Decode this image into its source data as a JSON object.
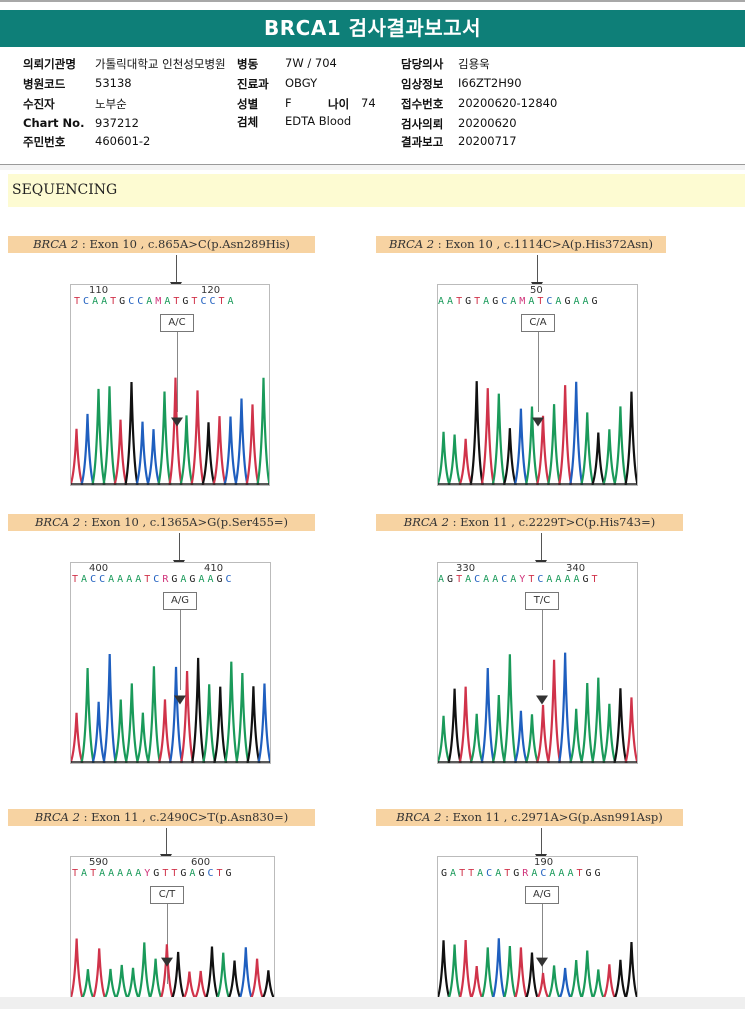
{
  "report": {
    "title": "BRCA1 검사결과보고서"
  },
  "patient_info": {
    "institution_label": "의뢰기관명",
    "institution_value": "가톨릭대학교 인천성모병원",
    "ward_label": "병동",
    "ward_value": "7W / 704",
    "doctor_label": "담당의사",
    "doctor_value": "김용욱",
    "hospital_code_label": "병원코드",
    "hospital_code_value": "53138",
    "department_label": "진료과",
    "department_value": "OBGY",
    "clinical_info_label": "임상정보",
    "clinical_info_value": "I66ZT2H90",
    "patient_label": "수진자",
    "patient_value": "노부순",
    "sex_label": "성별",
    "sex_value": "F",
    "age_label": "나이",
    "age_value": "74",
    "receipt_no_label": "접수번호",
    "receipt_no_value": "20200620-12840",
    "chart_no_label": "Chart No.",
    "chart_no_value": "937212",
    "specimen_label": "검체",
    "specimen_value": "EDTA Blood",
    "request_date_label": "검사의뢰",
    "request_date_value": "20200620",
    "resident_no_label": "주민번호",
    "resident_no_value": "460601-2",
    "report_date_label": "결과보고",
    "report_date_value": "20200717"
  },
  "section": {
    "title": "SEQUENCING"
  },
  "variants": [
    {
      "gene": "BRCA 2",
      "detail": " : Exon 10 , c.865A>C(p.Asn289His)",
      "pos_left": "110",
      "pos_right": "120",
      "sequence": "TCAATGCCAMATGTCCTA",
      "call": "A/C"
    },
    {
      "gene": "BRCA 2",
      "detail": " : Exon 10 , c.1114C>A(p.His372Asn)",
      "pos_left": "",
      "pos_right": "50",
      "sequence": "AATGTAGCAMATCAGAAG",
      "call": "C/A"
    },
    {
      "gene": "BRCA 2",
      "detail": " : Exon 10 , c.1365A>G(p.Ser455=)",
      "pos_left": "400",
      "pos_right": "410",
      "sequence": "TACCAAAATCRGAGAAGC",
      "call": "A/G"
    },
    {
      "gene": "BRCA 2",
      "detail": " : Exon 11 , c.2229T>C(p.His743=)",
      "pos_left": "330",
      "pos_right": "340",
      "sequence": "AGTACAACAYTCAAAAGT",
      "call": "T/C"
    },
    {
      "gene": "BRCA 2",
      "detail": " : Exon 11 , c.2490C>T(p.Asn830=)",
      "pos_left": "590",
      "pos_right": "600",
      "sequence": "TATAAAAAYGTTGAGCTG",
      "call": "C/T"
    },
    {
      "gene": "BRCA 2",
      "detail": " : Exon 11 , c.2971A>G(p.Asn991Asp)",
      "pos_left": "",
      "pos_right": "190",
      "sequence": "GATTACATGRACAAATGG",
      "call": "A/G"
    }
  ],
  "colors": {
    "title_bg": "#0e7f78",
    "section_bg": "#fdfbd2",
    "variant_label_bg": "#f7d3a2",
    "base_A": "#1a9a5a",
    "base_C": "#1f5fbf",
    "base_G": "#222222",
    "base_T": "#d0334a"
  }
}
